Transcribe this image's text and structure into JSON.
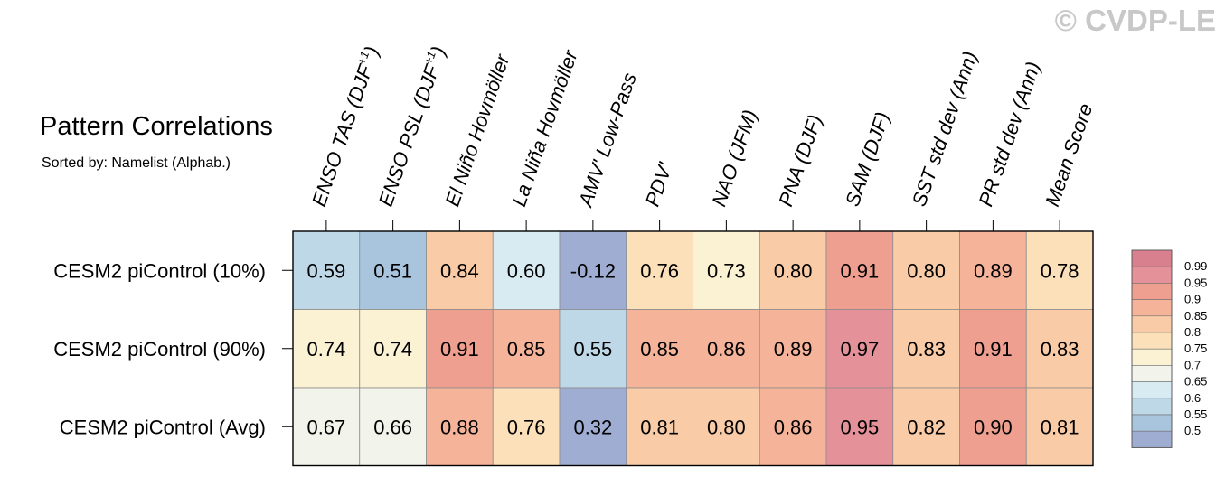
{
  "watermark": "© CVDP-LE",
  "title": "Pattern Correlations",
  "subtitle": "Sorted by: Namelist (Alphab.)",
  "chart_data": {
    "type": "heatmap",
    "columns": [
      "ENSO TAS (DJF+1)",
      "ENSO PSL (DJF+1)",
      "El Niño Hovmöller",
      "La Niña Hovmöller",
      "AMV' Low-Pass",
      "PDV'",
      "NAO (JFM)",
      "PNA (DJF)",
      "SAM (DJF)",
      "SST std dev (Ann)",
      "PR std dev (Ann)",
      "Mean Score"
    ],
    "rows": [
      "CESM2 piControl (10%)",
      "CESM2 piControl (90%)",
      "CESM2 piControl (Avg)"
    ],
    "values": [
      [
        0.59,
        0.51,
        0.84,
        0.6,
        -0.12,
        0.76,
        0.73,
        0.8,
        0.91,
        0.8,
        0.89,
        0.78
      ],
      [
        0.74,
        0.74,
        0.91,
        0.85,
        0.55,
        0.85,
        0.86,
        0.89,
        0.97,
        0.83,
        0.91,
        0.83
      ],
      [
        0.67,
        0.66,
        0.88,
        0.76,
        0.32,
        0.81,
        0.8,
        0.86,
        0.95,
        0.82,
        0.9,
        0.81
      ]
    ],
    "colorbar": {
      "levels": [
        "0.99",
        "0.95",
        "0.9",
        "0.85",
        "0.8",
        "0.75",
        "0.7",
        "0.65",
        "0.6",
        "0.55",
        "0.5"
      ],
      "colors": [
        "#d8808e",
        "#e4919a",
        "#ee9f8f",
        "#f5b39a",
        "#f9cca7",
        "#fbe0ba",
        "#fbf1d3",
        "#f2f3ea",
        "#d9ebf2",
        "#bfd8e7",
        "#a9c4dd",
        "#9fadd3"
      ]
    }
  }
}
